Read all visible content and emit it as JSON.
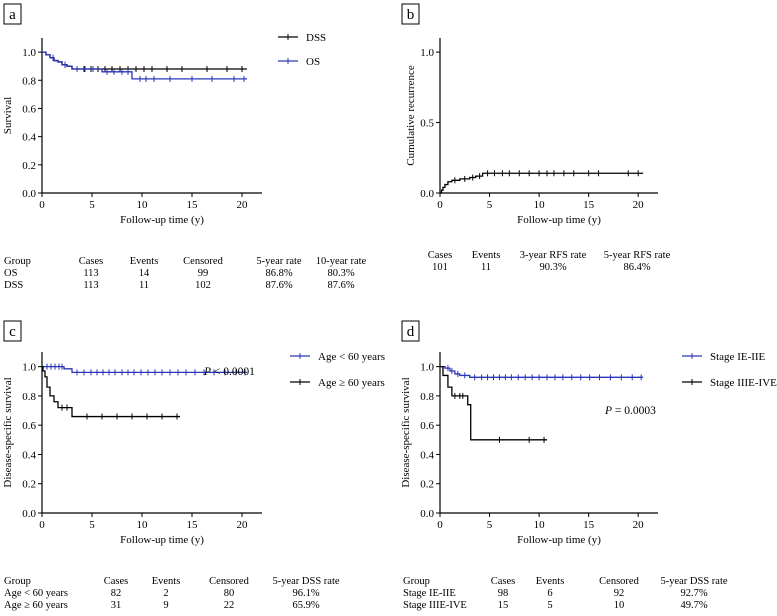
{
  "figure": {
    "panels": [
      {
        "id": "a",
        "letter": "a"
      },
      {
        "id": "b",
        "letter": "b"
      },
      {
        "id": "c",
        "letter": "c"
      },
      {
        "id": "d",
        "letter": "d"
      }
    ]
  },
  "chart_data": [
    {
      "id": "a",
      "type": "line",
      "title": "",
      "xlabel": "Follow-up time (y)",
      "ylabel": "Survival",
      "xlim": [
        0,
        22
      ],
      "ylim": [
        0,
        1.1
      ],
      "xticks": [
        "0",
        "5",
        "10",
        "15",
        "20"
      ],
      "xtick_values": [
        0,
        5,
        10,
        15,
        20
      ],
      "yticks": [
        "0.0",
        "0.2",
        "0.4",
        "0.6",
        "0.8",
        "1.0"
      ],
      "ytick_values": [
        0,
        0.2,
        0.4,
        0.6,
        0.8,
        1.0
      ],
      "legend_position": "top-right",
      "series": [
        {
          "name": "DSS",
          "color": "#000000",
          "steps": [
            [
              0,
              1.0
            ],
            [
              0.4,
              0.98
            ],
            [
              0.8,
              0.96
            ],
            [
              1.2,
              0.94
            ],
            [
              1.6,
              0.93
            ],
            [
              2.0,
              0.91
            ],
            [
              2.5,
              0.9
            ],
            [
              3.0,
              0.88
            ],
            [
              20.5,
              0.88
            ]
          ],
          "censor": [
            1.1,
            2.3,
            3.5,
            4.2,
            4.9,
            5.6,
            6.3,
            7.0,
            7.8,
            8.6,
            9.4,
            10.2,
            11.0,
            12.5,
            14.0,
            16.5,
            18.5,
            20.0
          ]
        },
        {
          "name": "OS",
          "color": "#2a35b8",
          "steps": [
            [
              0,
              1.0
            ],
            [
              0.4,
              0.98
            ],
            [
              0.8,
              0.96
            ],
            [
              1.2,
              0.94
            ],
            [
              1.6,
              0.93
            ],
            [
              2.0,
              0.91
            ],
            [
              2.5,
              0.9
            ],
            [
              3.0,
              0.88
            ],
            [
              6.0,
              0.86
            ],
            [
              9.0,
              0.81
            ],
            [
              20.5,
              0.81
            ]
          ],
          "censor": [
            1.1,
            2.3,
            3.5,
            4.3,
            5.1,
            6.5,
            7.2,
            8.0,
            8.6,
            9.8,
            10.4,
            11.2,
            12.8,
            15.0,
            17.0,
            19.2,
            20.2
          ]
        }
      ],
      "table": {
        "headers": [
          "Group",
          "Cases",
          "Events",
          "Censored",
          "5-year rate",
          "10-year rate"
        ],
        "rows": [
          [
            "OS",
            "113",
            "14",
            "99",
            "86.8%",
            "80.3%"
          ],
          [
            "DSS",
            "113",
            "11",
            "102",
            "87.6%",
            "87.6%"
          ]
        ]
      }
    },
    {
      "id": "b",
      "type": "line",
      "title": "",
      "xlabel": "Follow-up time (y)",
      "ylabel": "Cumulative recurrence",
      "xlim": [
        0,
        22
      ],
      "ylim": [
        0,
        1.1
      ],
      "xticks": [
        "0",
        "5",
        "10",
        "15",
        "20"
      ],
      "xtick_values": [
        0,
        5,
        10,
        15,
        20
      ],
      "yticks": [
        "0.0",
        "0.5",
        "1.0"
      ],
      "ytick_values": [
        0,
        0.5,
        1.0
      ],
      "legend_position": "none",
      "series": [
        {
          "name": "Recurrence",
          "color": "#000000",
          "steps": [
            [
              0,
              0.0
            ],
            [
              0.15,
              0.02
            ],
            [
              0.3,
              0.04
            ],
            [
              0.5,
              0.06
            ],
            [
              0.8,
              0.08
            ],
            [
              1.2,
              0.09
            ],
            [
              2.0,
              0.1
            ],
            [
              3.0,
              0.11
            ],
            [
              3.6,
              0.12
            ],
            [
              4.3,
              0.14
            ],
            [
              20.5,
              0.14
            ]
          ],
          "censor": [
            1.5,
            2.5,
            3.3,
            4.0,
            4.8,
            5.5,
            6.3,
            7.0,
            8.0,
            9.0,
            10.0,
            10.8,
            11.5,
            12.5,
            13.5,
            15.0,
            16.0,
            19.0,
            20.0
          ]
        }
      ],
      "table": {
        "headers": [
          "Cases",
          "Events",
          "3-year RFS rate",
          "5-year RFS rate"
        ],
        "rows": [
          [
            "101",
            "11",
            "90.3%",
            "86.4%"
          ]
        ]
      }
    },
    {
      "id": "c",
      "type": "line",
      "title": "",
      "xlabel": "Follow-up time (y)",
      "ylabel": "Disease-specific survival",
      "xlim": [
        0,
        22
      ],
      "ylim": [
        0,
        1.1
      ],
      "xticks": [
        "0",
        "5",
        "10",
        "15",
        "20"
      ],
      "xtick_values": [
        0,
        5,
        10,
        15,
        20
      ],
      "yticks": [
        "0.0",
        "0.2",
        "0.4",
        "0.6",
        "0.8",
        "1.0"
      ],
      "ytick_values": [
        0,
        0.2,
        0.4,
        0.6,
        0.8,
        1.0
      ],
      "legend_position": "top-right",
      "annotation": {
        "italic": "P",
        "text": " < 0.0001"
      },
      "series": [
        {
          "name": "Age < 60 years",
          "color": "#2a35b8",
          "steps": [
            [
              0,
              1.0
            ],
            [
              2.2,
              0.985
            ],
            [
              3.0,
              0.961
            ],
            [
              20.5,
              0.961
            ]
          ],
          "censor": [
            0.5,
            0.9,
            1.3,
            1.7,
            2.0,
            3.5,
            4.2,
            4.9,
            5.5,
            6.1,
            6.7,
            7.3,
            8.0,
            8.6,
            9.2,
            9.9,
            10.6,
            11.3,
            12.0,
            12.8,
            13.6,
            14.4,
            15.3,
            16.2,
            17.2,
            18.3,
            19.4,
            20.3
          ]
        },
        {
          "name": "Age ≥ 60 years",
          "color": "#000000",
          "steps": [
            [
              0,
              1.0
            ],
            [
              0.1,
              0.97
            ],
            [
              0.3,
              0.93
            ],
            [
              0.5,
              0.86
            ],
            [
              0.8,
              0.8
            ],
            [
              1.2,
              0.76
            ],
            [
              1.6,
              0.72
            ],
            [
              3.0,
              0.659
            ],
            [
              13.8,
              0.659
            ]
          ],
          "censor": [
            2.0,
            2.5,
            4.5,
            6.0,
            7.5,
            9.0,
            10.5,
            12.0,
            13.5
          ]
        }
      ],
      "table": {
        "headers": [
          "Group",
          "Cases",
          "Events",
          "Censored",
          "5-year DSS rate"
        ],
        "rows": [
          [
            "Age < 60 years",
            "82",
            "2",
            "80",
            "96.1%"
          ],
          [
            "Age ≥ 60 years",
            "31",
            "9",
            "22",
            "65.9%"
          ]
        ]
      }
    },
    {
      "id": "d",
      "type": "line",
      "title": "",
      "xlabel": "Follow-up time (y)",
      "ylabel": "Disease-specific survival",
      "xlim": [
        0,
        22
      ],
      "ylim": [
        0,
        1.1
      ],
      "xticks": [
        "0",
        "5",
        "10",
        "15",
        "20"
      ],
      "xtick_values": [
        0,
        5,
        10,
        15,
        20
      ],
      "yticks": [
        "0.0",
        "0.2",
        "0.4",
        "0.6",
        "0.8",
        "1.0"
      ],
      "ytick_values": [
        0,
        0.2,
        0.4,
        0.6,
        0.8,
        1.0
      ],
      "legend_position": "top-right",
      "annotation": {
        "italic": "P",
        "text": " = 0.0003"
      },
      "series": [
        {
          "name": "Stage IE-IIE",
          "color": "#2a35b8",
          "steps": [
            [
              0,
              1.0
            ],
            [
              0.5,
              0.99
            ],
            [
              1.0,
              0.97
            ],
            [
              1.5,
              0.95
            ],
            [
              2.0,
              0.94
            ],
            [
              3.0,
              0.927
            ],
            [
              20.5,
              0.927
            ]
          ],
          "censor": [
            0.8,
            1.2,
            1.8,
            2.5,
            3.5,
            4.2,
            4.8,
            5.4,
            6.0,
            6.6,
            7.2,
            7.9,
            8.6,
            9.3,
            10.0,
            10.8,
            11.6,
            12.4,
            13.3,
            14.2,
            15.1,
            16.1,
            17.2,
            18.3,
            19.4,
            20.3
          ]
        },
        {
          "name": "Stage IIIE-IVE",
          "color": "#000000",
          "steps": [
            [
              0,
              1.0
            ],
            [
              0.3,
              0.94
            ],
            [
              0.8,
              0.86
            ],
            [
              1.2,
              0.8
            ],
            [
              2.8,
              0.74
            ],
            [
              3.1,
              0.5
            ],
            [
              10.8,
              0.5
            ]
          ],
          "censor": [
            1.5,
            2.0,
            2.3,
            6.0,
            9.0,
            10.5
          ]
        }
      ],
      "table": {
        "headers": [
          "Group",
          "Cases",
          "Events",
          "Censored",
          "5-year DSS rate"
        ],
        "rows": [
          [
            "Stage IE-IIE",
            "98",
            "6",
            "92",
            "92.7%"
          ],
          [
            "Stage IIIE-IVE",
            "15",
            "5",
            "10",
            "49.7%"
          ]
        ]
      }
    }
  ]
}
